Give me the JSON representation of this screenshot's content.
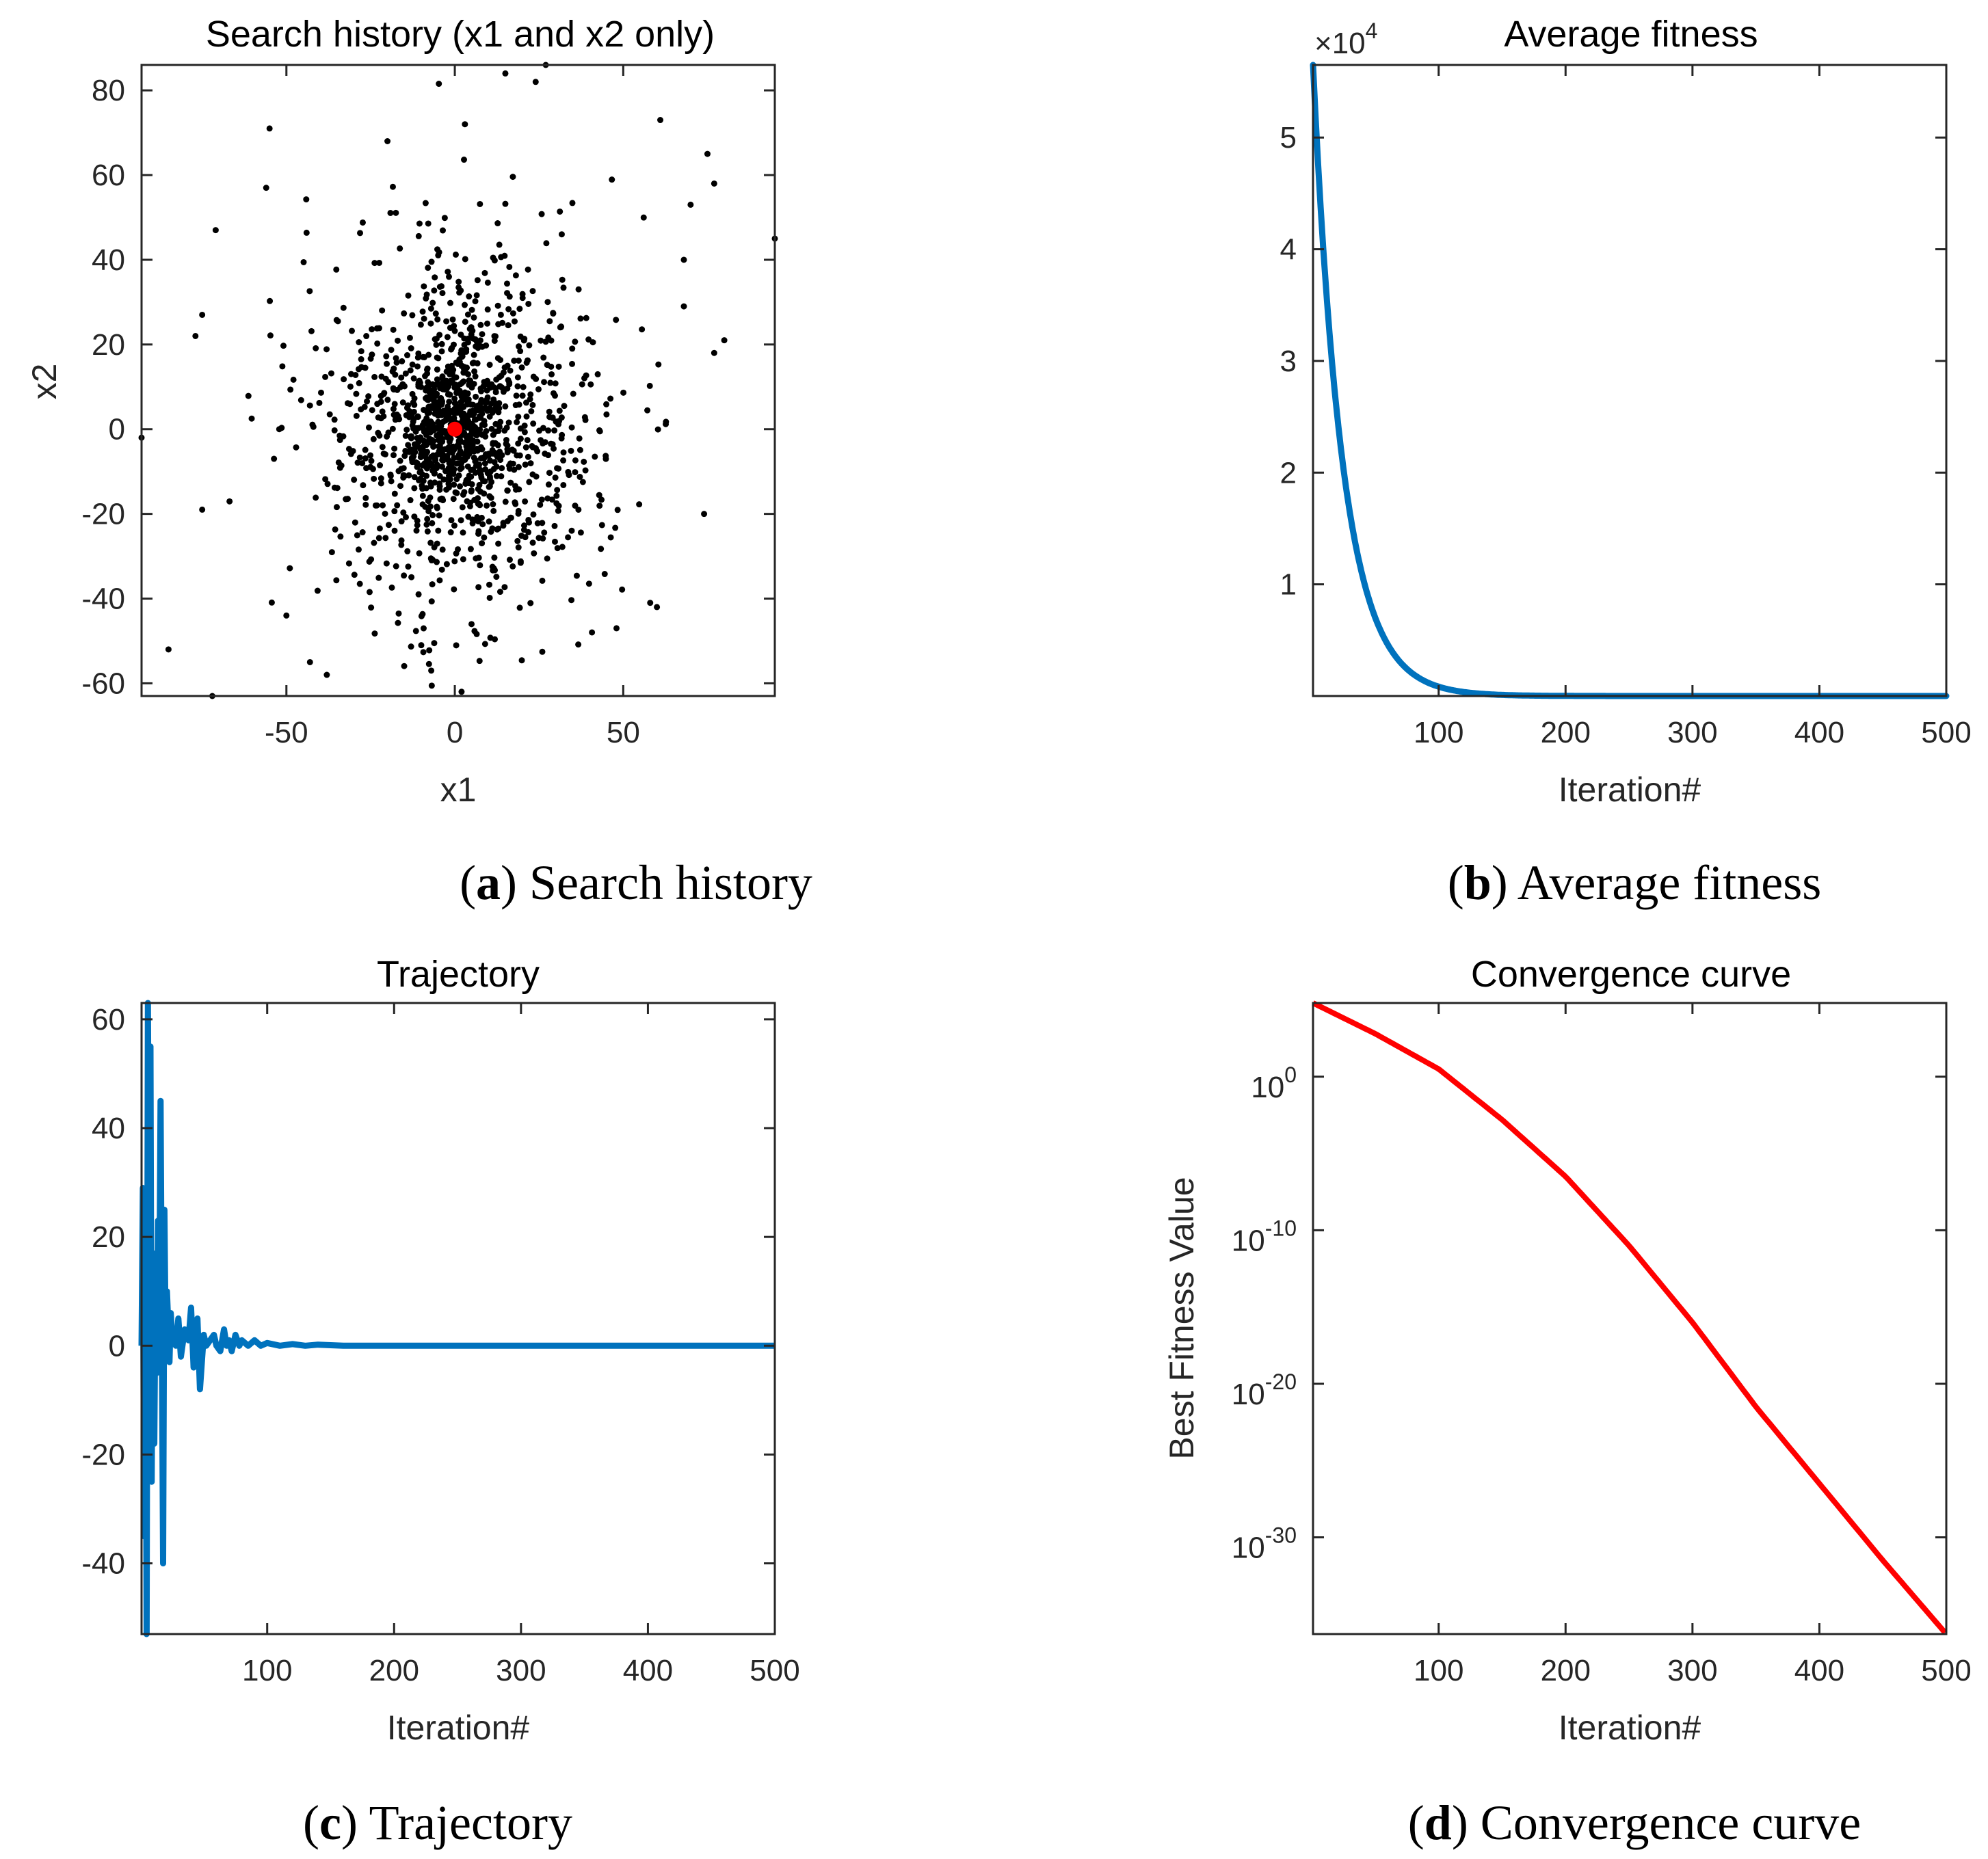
{
  "chart_data": [
    {
      "type": "scatter",
      "panel": "a",
      "title": "Search history (x1 and x2 only)",
      "xlabel": "x1",
      "ylabel": "x2",
      "xlim": [
        -93,
        95
      ],
      "ylim": [
        -63,
        86
      ],
      "xticks": [
        -50,
        0,
        50
      ],
      "yticks": [
        -60,
        -40,
        -20,
        0,
        20,
        40,
        60,
        80
      ],
      "point_color": "#000000",
      "best_color": "#ff0000",
      "best_point": {
        "x": 0,
        "y": 0
      },
      "distribution": {
        "center": [
          0,
          0
        ],
        "approx_sd": 22,
        "approx_count": 1400
      },
      "outliers": [
        {
          "x": 27,
          "y": 86
        },
        {
          "x": 15,
          "y": 84
        },
        {
          "x": 24,
          "y": 82
        },
        {
          "x": 61,
          "y": 73
        },
        {
          "x": -55,
          "y": 71
        },
        {
          "x": 3,
          "y": 72
        },
        {
          "x": -20,
          "y": 68
        },
        {
          "x": 75,
          "y": 65
        },
        {
          "x": -56,
          "y": 57
        },
        {
          "x": 77,
          "y": 58
        },
        {
          "x": 70,
          "y": 53
        },
        {
          "x": -71,
          "y": 47
        },
        {
          "x": 95,
          "y": 45
        },
        {
          "x": 68,
          "y": 40
        },
        {
          "x": 68,
          "y": 29
        },
        {
          "x": -75,
          "y": 27
        },
        {
          "x": -77,
          "y": 22
        },
        {
          "x": 80,
          "y": 21
        },
        {
          "x": 77,
          "y": 18
        },
        {
          "x": -93,
          "y": -2
        },
        {
          "x": -75,
          "y": -19
        },
        {
          "x": 74,
          "y": -20
        },
        {
          "x": 58,
          "y": -41
        },
        {
          "x": 60,
          "y": -42
        },
        {
          "x": 48,
          "y": -47
        },
        {
          "x": -85,
          "y": -52
        },
        {
          "x": -50,
          "y": -44
        },
        {
          "x": -43,
          "y": -55
        },
        {
          "x": -38,
          "y": -58
        },
        {
          "x": -72,
          "y": -63
        },
        {
          "x": 2,
          "y": -62
        },
        {
          "x": -7,
          "y": -57
        }
      ],
      "seed": 7
    },
    {
      "type": "line",
      "panel": "b",
      "title": "Average fitness",
      "xlabel": "Iteration#",
      "ylabel": "",
      "xlim": [
        1,
        500
      ],
      "ylim": [
        0,
        56500
      ],
      "xticks": [
        100,
        200,
        300,
        400,
        500
      ],
      "yticks": [
        10000,
        20000,
        30000,
        40000,
        50000
      ],
      "ytick_labels": [
        "1",
        "2",
        "3",
        "4",
        "5"
      ],
      "exponent_label": "×10",
      "exponent": "4",
      "color": "#0072bd",
      "model": "A*exp(-(x-1)/k)",
      "x": [
        1,
        5,
        10,
        20,
        30,
        40,
        50,
        60,
        70,
        80,
        90,
        100,
        150,
        200,
        300,
        400,
        500
      ],
      "values": [
        56500,
        48200,
        39500,
        26400,
        17700,
        11800,
        7900,
        5300,
        3500,
        2400,
        1600,
        1050,
        200,
        30,
        0,
        0,
        0
      ]
    },
    {
      "type": "line",
      "panel": "c",
      "title": "Trajectory",
      "xlabel": "Iteration#",
      "ylabel": "",
      "xlim": [
        1,
        500
      ],
      "ylim": [
        -53,
        63
      ],
      "xticks": [
        100,
        200,
        300,
        400,
        500
      ],
      "yticks": [
        -40,
        -20,
        0,
        20,
        40,
        60
      ],
      "color": "#0072bd",
      "x": [
        1,
        2,
        3,
        4,
        5,
        6,
        7,
        8,
        9,
        10,
        11,
        12,
        13,
        14,
        15,
        16,
        17,
        18,
        19,
        20,
        21,
        22,
        23,
        24,
        25,
        26,
        28,
        30,
        32,
        35,
        38,
        40,
        42,
        45,
        47,
        50,
        52,
        55,
        58,
        60,
        63,
        66,
        68,
        70,
        72,
        75,
        78,
        80,
        85,
        90,
        95,
        100,
        110,
        120,
        130,
        140,
        160,
        500
      ],
      "values": [
        0,
        29,
        -35,
        25,
        -53,
        63,
        10,
        55,
        -25,
        17,
        -18,
        12,
        -5,
        23,
        8,
        45,
        2,
        -40,
        25,
        0,
        10,
        4,
        -3,
        6,
        2,
        3,
        0,
        5,
        -2,
        3,
        1,
        7,
        -4,
        5,
        -8,
        2,
        0,
        1,
        2,
        0,
        -1,
        3,
        0,
        1,
        -1,
        2,
        0,
        1,
        0,
        1,
        0,
        0.5,
        0,
        0.3,
        0,
        0.2,
        0,
        0
      ]
    },
    {
      "type": "line",
      "panel": "d",
      "title": "Convergence curve",
      "xlabel": "Iteration#",
      "ylabel": "Best Fitness Value",
      "yscale": "log",
      "xlim": [
        1,
        500
      ],
      "ylim_log10": [
        -36.3,
        4.8
      ],
      "xticks": [
        100,
        200,
        300,
        400,
        500
      ],
      "yticks_log10": [
        0,
        -10,
        -20,
        -30
      ],
      "ytick_base": "10",
      "ytick_exponents": [
        "0",
        "-10",
        "-20",
        "-30"
      ],
      "color": "#ff0000",
      "x": [
        1,
        50,
        100,
        150,
        200,
        250,
        300,
        350,
        400,
        450,
        500
      ],
      "log10_values": [
        4.8,
        2.8,
        0.5,
        -2.8,
        -6.5,
        -11.0,
        -16.0,
        -21.5,
        -26.5,
        -31.5,
        -36.3
      ]
    }
  ],
  "captions": [
    {
      "letter": "a",
      "text": "Search history"
    },
    {
      "letter": "b",
      "text": "Average fitness"
    },
    {
      "letter": "c",
      "text": "Trajectory"
    },
    {
      "letter": "d",
      "text": "Convergence curve"
    }
  ]
}
